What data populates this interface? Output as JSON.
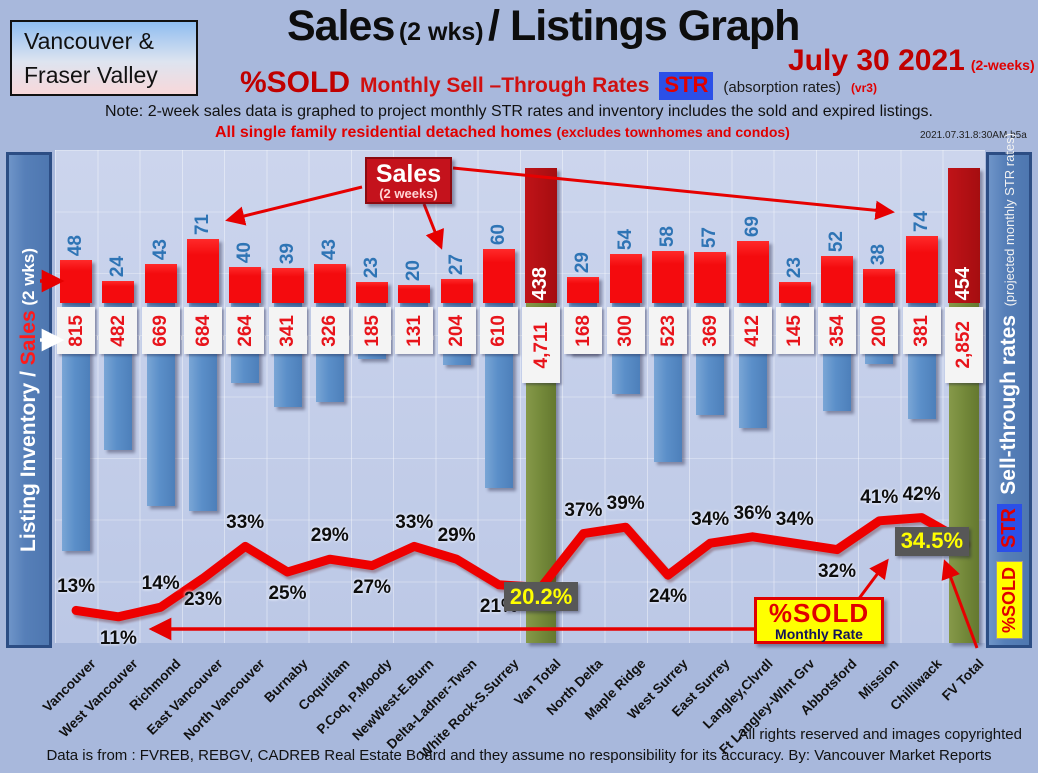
{
  "logo": {
    "line1": "Vancouver &",
    "line2": "Fraser Valley"
  },
  "header": {
    "title_sales": "Sales",
    "title_wks": "(2 wks)",
    "title_rest": "/ Listings Graph",
    "date": "July  30 2021",
    "date_note": "(2-weeks)",
    "pct_sold": "%SOLD",
    "rates_text": "Monthly Sell –Through Rates",
    "str_badge": "STR",
    "absorption": "(absorption rates)",
    "version": "(vr3)",
    "note": "Note: 2-week sales data is graphed to project monthly STR rates and inventory includes the sold and expired listings.",
    "scope": "All single family residential detached homes",
    "scope_note": "(excludes townhomes and condos)",
    "timestamp": "2021.07.31.8:30AM b5a"
  },
  "left_axis": {
    "inventory": "Listing Inventory / ",
    "sales": "Sales",
    "period": " (2  wks)"
  },
  "right_axis": {
    "sold": "%SOLD",
    "str": "STR",
    "rates": "Sell-through rates",
    "note": "(projected monthly STR rates)"
  },
  "annotations": {
    "sales_title": "Sales",
    "sales_sub": "(2 weeks)",
    "sold_title": "%SOLD",
    "sold_sub": "Monthly Rate"
  },
  "footer": {
    "rights": "All rights reserved and  images copyrighted",
    "source": "Data is from : FVREB, REBGV, CADREB Real Estate Board and they assume no responsibility for its accuracy. By: Vancouver Market Reports"
  },
  "chart_data": {
    "type": "bar",
    "subtype": "combo-dual-bar-plus-line",
    "title": "Sales (2 wks) / Listings Graph",
    "categories": [
      "Vancouver",
      "West Vancouver",
      "Richmond",
      "East Vancouver",
      "North Vancouver",
      "Burnaby",
      "Coquitlam",
      "P.Coq, P.Moody",
      "NewWest-E.Burn",
      "Delta-Ladner-Twsn",
      "White Rock-S.Surrey",
      "Van Total",
      "North Delta",
      "Maple Ridge",
      "West Surrey",
      "East Surrey",
      "Langley,Clvrdl",
      "Ft Langley-Wlnt Grv",
      "Abbotsford",
      "Mission",
      "Chilliwack",
      "FV Total"
    ],
    "series": [
      {
        "name": "Sales (2 weeks)",
        "values": [
          48,
          24,
          43,
          71,
          40,
          39,
          43,
          23,
          20,
          27,
          60,
          438,
          29,
          54,
          58,
          57,
          69,
          23,
          52,
          38,
          74,
          454
        ]
      },
      {
        "name": "Listing Inventory",
        "values": [
          815,
          482,
          669,
          684,
          264,
          341,
          326,
          185,
          131,
          204,
          610,
          4711,
          168,
          300,
          523,
          369,
          412,
          145,
          354,
          200,
          381,
          2852
        ]
      },
      {
        "name": "%SOLD Monthly Sell-Through Rate",
        "values": [
          13,
          11,
          14,
          23,
          33,
          25,
          29,
          27,
          33,
          29,
          21,
          20.2,
          37,
          39,
          24,
          34,
          36,
          34,
          32,
          41,
          42,
          34.5
        ]
      }
    ],
    "sales_labels": [
      "48",
      "24",
      "43",
      "71",
      "40",
      "39",
      "43",
      "23",
      "20",
      "27",
      "60",
      "438",
      "29",
      "54",
      "58",
      "57",
      "69",
      "23",
      "52",
      "38",
      "74",
      "454"
    ],
    "inventory_labels": [
      "815",
      "482",
      "669",
      "684",
      "264",
      "341",
      "326",
      "185",
      "131",
      "204",
      "610",
      "4,711",
      "168",
      "300",
      "523",
      "369",
      "412",
      "145",
      "354",
      "200",
      "381",
      "2,852"
    ],
    "str_labels": [
      "13%",
      "11%",
      "14%",
      "23%",
      "33%",
      "25%",
      "29%",
      "27%",
      "33%",
      "29%",
      "21%",
      "20.2%",
      "37%",
      "39%",
      "24%",
      "34%",
      "36%",
      "34%",
      "32%",
      "41%",
      "42%",
      "34.5%"
    ],
    "str_label_side": [
      "above",
      "below",
      "above",
      "below",
      "above",
      "below",
      "above",
      "below",
      "above",
      "above",
      "below",
      "box",
      "above",
      "above",
      "below",
      "above",
      "above",
      "above",
      "below",
      "above",
      "above",
      "box"
    ],
    "total_column_indexes": [
      11,
      21
    ],
    "legend_position": "sidebars",
    "grid": true,
    "colors": {
      "sales_bar": "#f40b0e",
      "inventory_bar": "#5b8fc9",
      "total_sales_bar": "#a50d10",
      "total_inventory_bar": "#74893a",
      "str_line": "#ee0000",
      "sales_value_text": "#2e74b5",
      "inventory_value_text": "#e8141b",
      "total_value_text": "#ffffff",
      "str_highlight_box": "#575757",
      "str_highlight_text": "#ffff00"
    }
  }
}
